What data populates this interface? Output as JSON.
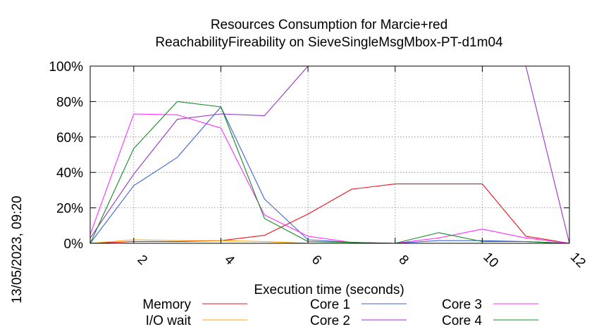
{
  "chart_data": {
    "type": "line",
    "title": [
      "Resources Consumption for Marcie+red",
      "ReachabilityFireability on SieveSingleMsgMbox-PT-d1m04"
    ],
    "xlabel": "Execution time (seconds)",
    "ylabel": "",
    "timestamp": "13/05/2023, 09:20",
    "xlim": [
      1,
      12
    ],
    "ylim": [
      0,
      100
    ],
    "x_ticks": [
      "2",
      "4",
      "6",
      "8",
      "10",
      "12"
    ],
    "y_ticks": [
      "0%",
      "20%",
      "40%",
      "60%",
      "80%",
      "100%"
    ],
    "grid": true,
    "legend_position": "bottom",
    "series": [
      {
        "name": "Memory",
        "color": "#e8141c",
        "points": [
          [
            1,
            0
          ],
          [
            2,
            1
          ],
          [
            3,
            1
          ],
          [
            4,
            1.5
          ],
          [
            5,
            4.5
          ],
          [
            6,
            16.5
          ],
          [
            7,
            30.5
          ],
          [
            8,
            33.5
          ],
          [
            9,
            33.5
          ],
          [
            10,
            33.5
          ],
          [
            11,
            4
          ],
          [
            12,
            0
          ]
        ]
      },
      {
        "name": "I/O wait",
        "color": "#ffa500",
        "points": [
          [
            1,
            0
          ],
          [
            2,
            2
          ],
          [
            3,
            1.5
          ],
          [
            4,
            1.5
          ],
          [
            5,
            1
          ],
          [
            6,
            0
          ],
          [
            7,
            0
          ],
          [
            8,
            0
          ],
          [
            9,
            0
          ],
          [
            10,
            0
          ],
          [
            11,
            0
          ],
          [
            12,
            0
          ]
        ]
      },
      {
        "name": "Core 1",
        "color": "#3c64d2",
        "points": [
          [
            1,
            0
          ],
          [
            2,
            32.5
          ],
          [
            3,
            48.5
          ],
          [
            4,
            77
          ],
          [
            5,
            25
          ],
          [
            6,
            2
          ],
          [
            7,
            0.5
          ],
          [
            8,
            0
          ],
          [
            9,
            1.5
          ],
          [
            10,
            1.5
          ],
          [
            11,
            1
          ],
          [
            12,
            0
          ]
        ]
      },
      {
        "name": "Core 2",
        "color": "#9932cc",
        "points": [
          [
            1,
            3
          ],
          [
            2,
            39
          ],
          [
            3,
            70
          ],
          [
            4,
            73
          ],
          [
            5,
            72
          ],
          [
            6,
            100
          ],
          [
            7,
            100
          ],
          [
            8,
            100
          ],
          [
            9,
            100
          ],
          [
            10,
            100
          ],
          [
            11,
            100
          ],
          [
            12,
            0
          ]
        ]
      },
      {
        "name": "Core 3",
        "color": "#ff30ff",
        "points": [
          [
            1,
            5
          ],
          [
            2,
            73
          ],
          [
            3,
            72.5
          ],
          [
            4,
            65
          ],
          [
            5,
            16
          ],
          [
            6,
            4
          ],
          [
            7,
            0.5
          ],
          [
            8,
            0
          ],
          [
            9,
            3
          ],
          [
            10,
            8
          ],
          [
            11,
            3
          ],
          [
            12,
            0
          ]
        ]
      },
      {
        "name": "Core 4",
        "color": "#138a26",
        "points": [
          [
            1,
            0
          ],
          [
            2,
            53.5
          ],
          [
            3,
            80
          ],
          [
            4,
            77
          ],
          [
            5,
            14
          ],
          [
            6,
            1
          ],
          [
            7,
            0.5
          ],
          [
            8,
            0
          ],
          [
            9,
            6
          ],
          [
            10,
            1
          ],
          [
            11,
            1
          ],
          [
            12,
            0
          ]
        ]
      }
    ]
  }
}
